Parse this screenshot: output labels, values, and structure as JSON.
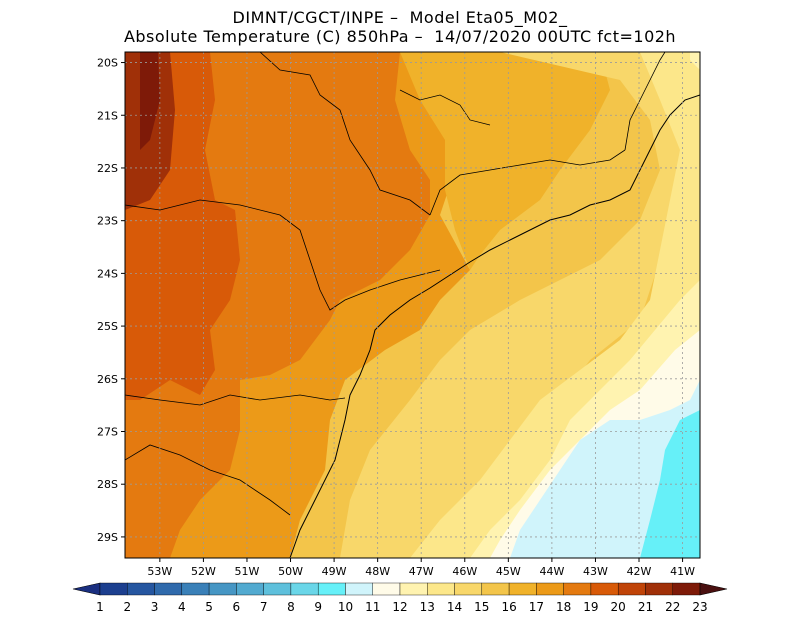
{
  "title": {
    "line1": "DIMNT/CGCT/INPE –  Model Eta05_M02_",
    "line2": "Absolute Temperature (C) 850hPa –  14/07/2020 00UTC fct=102h"
  },
  "map": {
    "lat_range": [
      -29.4,
      -19.8
    ],
    "lon_range": [
      -53.8,
      -40.6
    ],
    "lat_ticks": [
      {
        "value": -20,
        "label": "20S"
      },
      {
        "value": -21,
        "label": "21S"
      },
      {
        "value": -22,
        "label": "22S"
      },
      {
        "value": -23,
        "label": "23S"
      },
      {
        "value": -24,
        "label": "24S"
      },
      {
        "value": -25,
        "label": "25S"
      },
      {
        "value": -26,
        "label": "26S"
      },
      {
        "value": -27,
        "label": "27S"
      },
      {
        "value": -28,
        "label": "28S"
      },
      {
        "value": -29,
        "label": "29S"
      }
    ],
    "lon_ticks": [
      {
        "value": -53,
        "label": "53W"
      },
      {
        "value": -52,
        "label": "52W"
      },
      {
        "value": -51,
        "label": "51W"
      },
      {
        "value": -50,
        "label": "50W"
      },
      {
        "value": -49,
        "label": "49W"
      },
      {
        "value": -48,
        "label": "48W"
      },
      {
        "value": -47,
        "label": "47W"
      },
      {
        "value": -46,
        "label": "46W"
      },
      {
        "value": -45,
        "label": "45W"
      },
      {
        "value": -44,
        "label": "44W"
      },
      {
        "value": -43,
        "label": "43W"
      },
      {
        "value": -42,
        "label": "42W"
      },
      {
        "value": -41,
        "label": "41W"
      }
    ],
    "grid": "dotted"
  },
  "colorbar": {
    "labels": [
      "1",
      "2",
      "3",
      "4",
      "5",
      "6",
      "7",
      "8",
      "9",
      "10",
      "11",
      "12",
      "13",
      "14",
      "15",
      "16",
      "17",
      "18",
      "19",
      "20",
      "21",
      "22",
      "23"
    ],
    "colors": [
      "#1c3f8f",
      "#2556a0",
      "#2f6aac",
      "#3a80b8",
      "#4696c4",
      "#52aad0",
      "#5ec0dc",
      "#6ad6e8",
      "#66f0f8",
      "#d0f4fb",
      "#fffbe8",
      "#fff3b0",
      "#fce78a",
      "#f8d76a",
      "#f3c54a",
      "#f0b22a",
      "#ec9a18",
      "#e47a10",
      "#d85a08",
      "#c04408",
      "#a03008",
      "#7e1a08"
    ],
    "left_arrow_color": "#1a2f80",
    "right_arrow_color": "#4a1010"
  }
}
